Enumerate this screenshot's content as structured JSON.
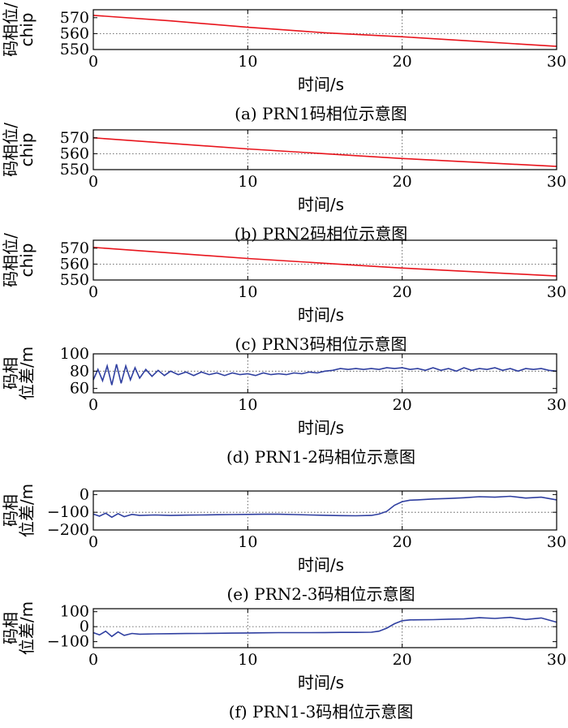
{
  "chart_data": [
    {
      "type": "line",
      "caption": "(a) PRN1码相位示意图",
      "ylabel_line1": "码相位/",
      "ylabel_line2": "chip",
      "xlabel": "时间/s",
      "xlim": [
        0,
        30
      ],
      "ylim": [
        550,
        575
      ],
      "xticks": [
        0,
        10,
        20,
        30
      ],
      "yticks": [
        550,
        560,
        570
      ],
      "hgrid": [
        560
      ],
      "vgrid": [
        10,
        20
      ],
      "color": "#e8141c",
      "series": [
        {
          "x": [
            0,
            5,
            10,
            15,
            20,
            25,
            30
          ],
          "y": [
            571.5,
            568,
            564,
            560.5,
            558,
            555,
            552
          ]
        }
      ]
    },
    {
      "type": "line",
      "caption": "(b) PRN2码相位示意图",
      "ylabel_line1": "码相位/",
      "ylabel_line2": "chip",
      "xlabel": "时间/s",
      "xlim": [
        0,
        30
      ],
      "ylim": [
        550,
        575
      ],
      "xticks": [
        0,
        10,
        20,
        30
      ],
      "yticks": [
        550,
        560,
        570
      ],
      "hgrid": [
        560
      ],
      "vgrid": [
        10,
        20
      ],
      "color": "#e8141c",
      "series": [
        {
          "x": [
            0,
            5,
            10,
            15,
            20,
            25,
            30
          ],
          "y": [
            570,
            566.5,
            563,
            560,
            557,
            554.5,
            552
          ]
        }
      ]
    },
    {
      "type": "line",
      "caption": "(c) PRN3码相位示意图",
      "ylabel_line1": "码相位/",
      "ylabel_line2": "chip",
      "xlabel": "时间/s",
      "xlim": [
        0,
        30
      ],
      "ylim": [
        550,
        575
      ],
      "xticks": [
        0,
        10,
        20,
        30
      ],
      "yticks": [
        550,
        560,
        570
      ],
      "hgrid": [
        560
      ],
      "vgrid": [
        10,
        20
      ],
      "color": "#e8141c",
      "series": [
        {
          "x": [
            0,
            5,
            10,
            15,
            20,
            25,
            30
          ],
          "y": [
            570.5,
            567,
            563.5,
            560.5,
            557.5,
            555,
            552.5
          ]
        }
      ]
    },
    {
      "type": "line",
      "caption": "(d) PRN1-2码相位示意图",
      "ylabel_line1": "码相",
      "ylabel_line2": "位差/m",
      "xlabel": "时间/s",
      "xlim": [
        0,
        30
      ],
      "ylim": [
        55,
        100
      ],
      "xticks": [
        0,
        10,
        20,
        30
      ],
      "yticks": [
        60,
        80,
        100
      ],
      "hgrid": [
        80
      ],
      "vgrid": [
        10,
        20
      ],
      "color": "#2f3fa0",
      "series": [
        {
          "x": [
            0,
            0.3,
            0.6,
            0.9,
            1.2,
            1.5,
            1.8,
            2.1,
            2.4,
            2.7,
            3.0,
            3.4,
            3.8,
            4.2,
            4.6,
            5.0,
            5.5,
            6.0,
            6.5,
            7.0,
            7.5,
            8.0,
            8.5,
            9.0,
            9.5,
            10.0,
            10.5,
            11.0,
            11.5,
            12.0,
            12.5,
            13.0,
            13.5,
            14.0,
            14.5,
            15.0,
            15.5,
            16.0,
            16.5,
            17.0,
            17.5,
            18.0,
            18.5,
            19.0,
            19.5,
            20.0,
            20.5,
            21.0,
            21.5,
            22.0,
            22.5,
            23.0,
            23.5,
            24.0,
            24.5,
            25.0,
            25.5,
            26.0,
            26.5,
            27.0,
            27.5,
            28.0,
            28.5,
            29.0,
            29.5,
            30.0
          ],
          "y": [
            70,
            82,
            69,
            86,
            64,
            88,
            66,
            86,
            70,
            84,
            72,
            82,
            74,
            81,
            75,
            80,
            76,
            79,
            75,
            79,
            76,
            78,
            75,
            78,
            76,
            77,
            75,
            78,
            76,
            77,
            76,
            78,
            77,
            79,
            78,
            80,
            81,
            83,
            82,
            83,
            82,
            83,
            82,
            84,
            83,
            84,
            82,
            83,
            81,
            84,
            81,
            83,
            80,
            84,
            81,
            83,
            82,
            84,
            81,
            83,
            80,
            83,
            82,
            83,
            81,
            80
          ]
        }
      ]
    },
    {
      "type": "line",
      "caption": "(e) PRN2-3码相位示意图",
      "ylabel_line1": "码相",
      "ylabel_line2": "位差/m",
      "xlabel": "时间/s",
      "xlim": [
        0,
        30
      ],
      "ylim": [
        -200,
        20
      ],
      "xticks": [
        0,
        10,
        20,
        30
      ],
      "yticks": [
        -200,
        -100,
        0
      ],
      "hgrid": [
        -100
      ],
      "vgrid": [
        10,
        20
      ],
      "color": "#2f3fa0",
      "series": [
        {
          "x": [
            0,
            0.4,
            0.8,
            1.2,
            1.6,
            2.0,
            2.5,
            3.0,
            4.0,
            5.0,
            6.0,
            7.0,
            8.0,
            9.0,
            10.0,
            11.0,
            12.0,
            13.0,
            14.0,
            15.0,
            16.0,
            17.0,
            18.0,
            18.5,
            19.0,
            19.5,
            20.0,
            20.5,
            21.0,
            22.0,
            23.0,
            24.0,
            25.0,
            26.0,
            27.0,
            28.0,
            29.0,
            30.0
          ],
          "y": [
            -110,
            -122,
            -105,
            -128,
            -108,
            -125,
            -112,
            -118,
            -115,
            -118,
            -116,
            -115,
            -114,
            -113,
            -112,
            -111,
            -111,
            -113,
            -115,
            -117,
            -119,
            -120,
            -118,
            -110,
            -95,
            -60,
            -40,
            -32,
            -30,
            -25,
            -22,
            -18,
            -12,
            -15,
            -10,
            -20,
            -15,
            -30
          ]
        }
      ]
    },
    {
      "type": "line",
      "caption": "(f) PRN1-3码相位示意图",
      "ylabel_line1": "码相",
      "ylabel_line2": "位差/m",
      "xlabel": "时间/s",
      "xlim": [
        0,
        30
      ],
      "ylim": [
        -140,
        120
      ],
      "xticks": [
        0,
        10,
        20,
        30
      ],
      "yticks": [
        -100,
        0,
        100
      ],
      "hgrid": [
        0
      ],
      "vgrid": [
        10,
        20
      ],
      "color": "#2f3fa0",
      "series": [
        {
          "x": [
            0,
            0.4,
            0.8,
            1.2,
            1.6,
            2.0,
            2.5,
            3.0,
            4.0,
            5.0,
            6.0,
            7.0,
            8.0,
            9.0,
            10.0,
            11.0,
            12.0,
            13.0,
            14.0,
            15.0,
            16.0,
            17.0,
            18.0,
            18.5,
            19.0,
            19.5,
            20.0,
            20.5,
            21.0,
            22.0,
            23.0,
            24.0,
            25.0,
            26.0,
            27.0,
            28.0,
            29.0,
            30.0
          ],
          "y": [
            -40,
            -55,
            -30,
            -65,
            -35,
            -58,
            -45,
            -50,
            -48,
            -47,
            -46,
            -45,
            -44,
            -43,
            -42,
            -41,
            -40,
            -40,
            -40,
            -39,
            -38,
            -38,
            -37,
            -30,
            -10,
            20,
            40,
            45,
            46,
            47,
            50,
            52,
            60,
            55,
            62,
            48,
            58,
            30
          ]
        }
      ]
    }
  ]
}
